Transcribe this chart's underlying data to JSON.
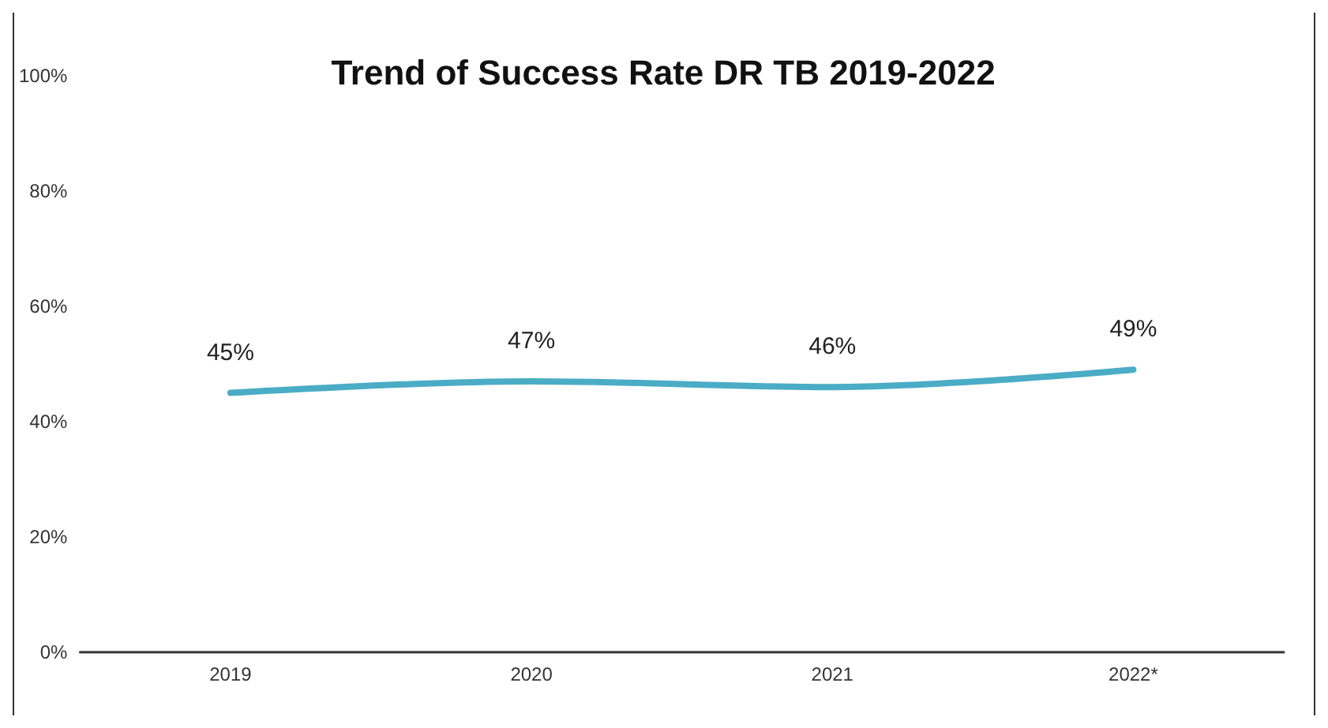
{
  "chart_data": {
    "type": "line",
    "title": "Trend of Success Rate DR TB 2019-2022",
    "categories": [
      "2019",
      "2020",
      "2021",
      "2022*"
    ],
    "series": [
      {
        "color": "#4bacc6",
        "values": [
          45,
          47,
          46,
          49
        ],
        "value_labels": [
          "45%",
          "47%",
          "46%",
          "49%"
        ]
      }
    ],
    "ylim": [
      0,
      100
    ],
    "yticks": [
      {
        "value": 0,
        "label": "0%"
      },
      {
        "value": 20,
        "label": "20%"
      },
      {
        "value": 40,
        "label": "40%"
      },
      {
        "value": 60,
        "label": "60%"
      },
      {
        "value": 80,
        "label": "80%"
      },
      {
        "value": 100,
        "label": "100%"
      }
    ],
    "grid": false,
    "marker": "none",
    "line_style": "solid"
  }
}
